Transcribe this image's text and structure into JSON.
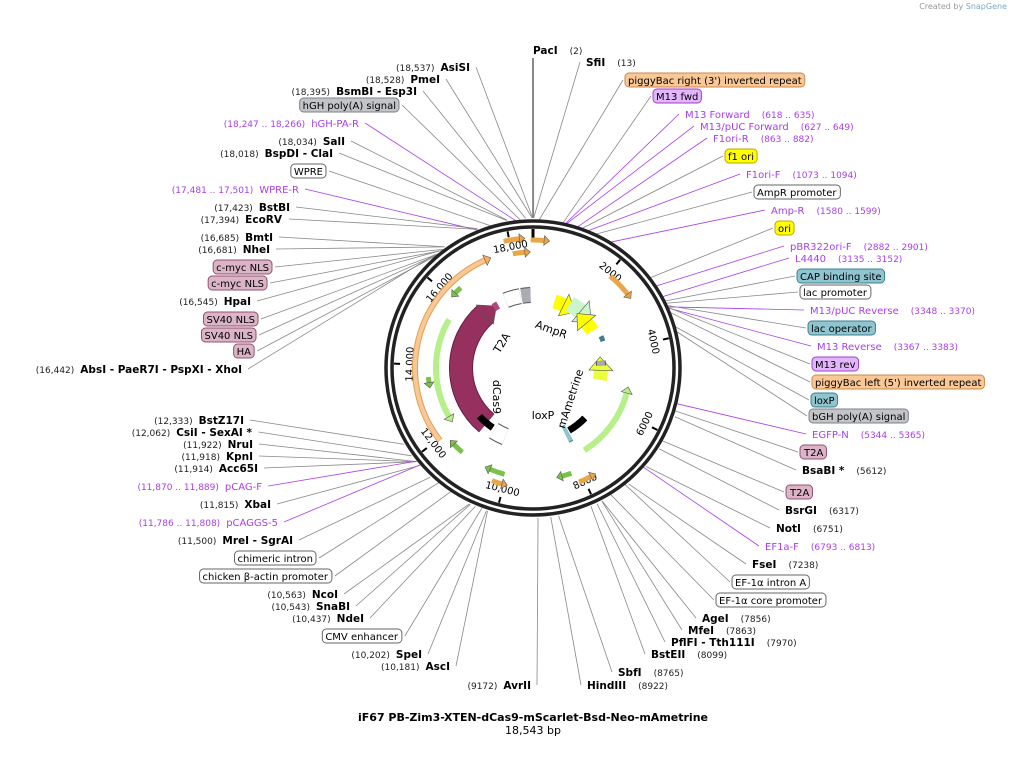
{
  "credit": {
    "prefix": "Created by",
    "brand": "SnapGene"
  },
  "plasmid": {
    "name": "iF67 PB-Zim3-XTEN-dCas9-mScarlet-Bsd-Neo-mAmetrine",
    "length": "18,543 bp",
    "total_bp": 18543
  },
  "colors": {
    "primer": "#a83ee8",
    "site_line": "#888888",
    "ring": "#222222",
    "orange": "#f9c896",
    "purple": "#e3b5fa",
    "yellow": "#ffff00",
    "teal": "#8ec5d0",
    "gray": "#c2c4c8",
    "white": "#ffffff",
    "pink": "#dcb4c8",
    "dcas9": "#96305f",
    "green": "#b7f08a"
  },
  "ticks": [
    "2000",
    "4000",
    "6000",
    "8000",
    "10,000",
    "12,000",
    "14,000",
    "16,000",
    "18,000"
  ],
  "inner_labels": [
    "T2A",
    "dCas9",
    "AmpR",
    "mAmetrine",
    "loxP"
  ],
  "labels": [
    {
      "kind": "site",
      "pos": "(18,537)",
      "name": "AsiSI",
      "bp": 18537
    },
    {
      "kind": "site",
      "pos": "(18,528)",
      "name": "PmeI",
      "bp": 18528
    },
    {
      "kind": "site",
      "pos": "(18,395)",
      "name": "BsmBI   - Esp3I",
      "bp": 18395
    },
    {
      "kind": "feature",
      "name": "hGH poly(A) signal",
      "color": "gray",
      "bp": 18300
    },
    {
      "kind": "primer",
      "pos": "(18,247 .. 18,266)",
      "name": "hGH-PA-R",
      "bp": 18256
    },
    {
      "kind": "site",
      "pos": "(18,034)",
      "name": "SalI",
      "bp": 18034
    },
    {
      "kind": "site",
      "pos": "(18,018)",
      "name": "BspDI   - ClaI",
      "bp": 18018
    },
    {
      "kind": "feature",
      "name": "WPRE",
      "color": "white",
      "bp": 17700
    },
    {
      "kind": "primer",
      "pos": "(17,481 .. 17,501)",
      "name": "WPRE-R",
      "bp": 17491
    },
    {
      "kind": "site",
      "pos": "(17,423)",
      "name": "BstBI",
      "bp": 17423
    },
    {
      "kind": "site",
      "pos": "(17,394)",
      "name": "EcoRV",
      "bp": 17394
    },
    {
      "kind": "site",
      "pos": "(16,685)",
      "name": "BmtI",
      "bp": 16685
    },
    {
      "kind": "site",
      "pos": "(16,681)",
      "name": "NheI",
      "bp": 16681
    },
    {
      "kind": "feature",
      "name": "c-myc NLS",
      "color": "pink",
      "bp": 16660
    },
    {
      "kind": "feature",
      "name": "c-myc NLS",
      "color": "pink",
      "bp": 16620
    },
    {
      "kind": "site",
      "pos": "(16,545)",
      "name": "HpaI",
      "bp": 16545
    },
    {
      "kind": "feature",
      "name": "SV40 NLS",
      "color": "pink",
      "bp": 16520
    },
    {
      "kind": "feature",
      "name": "SV40 NLS",
      "color": "pink",
      "bp": 16500
    },
    {
      "kind": "feature",
      "name": "HA",
      "color": "pink",
      "bp": 16470
    },
    {
      "kind": "site",
      "pos": "(16,442)",
      "name": "AbsI   - PaeR7I   - PspXI   - XhoI",
      "bp": 16442
    },
    {
      "kind": "site",
      "pos": "(12,333)",
      "name": "BstZ17I",
      "bp": 12333
    },
    {
      "kind": "site",
      "pos": "(12,062)",
      "name": "CsiI   - SexAI *",
      "bp": 12062
    },
    {
      "kind": "site",
      "pos": "(11,922)",
      "name": "NruI",
      "bp": 11922
    },
    {
      "kind": "site",
      "pos": "(11,918)",
      "name": "KpnI",
      "bp": 11918
    },
    {
      "kind": "site",
      "pos": "(11,914)",
      "name": "Acc65I",
      "bp": 11914
    },
    {
      "kind": "primer",
      "pos": "(11,870 .. 11,889)",
      "name": "pCAG-F",
      "bp": 11880
    },
    {
      "kind": "site",
      "pos": "(11,815)",
      "name": "XbaI",
      "bp": 11815
    },
    {
      "kind": "primer",
      "pos": "(11,786 .. 11,808)",
      "name": "pCAGGS-5",
      "bp": 11797
    },
    {
      "kind": "site",
      "pos": "(11,500)",
      "name": "MreI   - SgrAI",
      "bp": 11500
    },
    {
      "kind": "feature",
      "name": "chimeric intron",
      "color": "white",
      "bp": 11300
    },
    {
      "kind": "feature",
      "name": "chicken β-actin promoter",
      "color": "white",
      "bp": 11000
    },
    {
      "kind": "site",
      "pos": "(10,563)",
      "name": "NcoI",
      "bp": 10563
    },
    {
      "kind": "site",
      "pos": "(10,543)",
      "name": "SnaBI",
      "bp": 10543
    },
    {
      "kind": "site",
      "pos": "(10,437)",
      "name": "NdeI",
      "bp": 10437
    },
    {
      "kind": "feature",
      "name": "CMV enhancer",
      "color": "white",
      "bp": 10300
    },
    {
      "kind": "site",
      "pos": "(10,202)",
      "name": "SpeI",
      "bp": 10202
    },
    {
      "kind": "site",
      "pos": "(10,181)",
      "name": "AscI",
      "bp": 10181
    },
    {
      "kind": "site",
      "pos": "(9172)",
      "name": "AvrII",
      "bp": 9172
    },
    {
      "kind": "site",
      "pos": "(2)",
      "name": "PacI",
      "bp": 2
    },
    {
      "kind": "site",
      "pos": "(13)",
      "name": "SfiI",
      "bp": 13
    },
    {
      "kind": "feature",
      "name": "piggyBac right (3') inverted repeat",
      "color": "orange",
      "bp": 120
    },
    {
      "kind": "feature",
      "name": "M13 fwd",
      "color": "purple",
      "bp": 600
    },
    {
      "kind": "primer",
      "pos": "(618 .. 635)",
      "name": "M13 Forward",
      "bp": 626
    },
    {
      "kind": "primer",
      "pos": "(627 .. 649)",
      "name": "M13/pUC Forward",
      "bp": 638
    },
    {
      "kind": "primer",
      "pos": "(863 .. 882)",
      "name": "F1ori-R",
      "bp": 872
    },
    {
      "kind": "feature",
      "name": "f1 ori",
      "color": "yellow",
      "bp": 1000
    },
    {
      "kind": "primer",
      "pos": "(1073 .. 1094)",
      "name": "F1ori-F",
      "bp": 1083
    },
    {
      "kind": "feature",
      "name": "AmpR promoter",
      "color": "white",
      "bp": 1300
    },
    {
      "kind": "primer",
      "pos": "(1580 .. 1599)",
      "name": "Amp-R",
      "bp": 1590
    },
    {
      "kind": "feature",
      "name": "ori",
      "color": "yellow",
      "bp": 2700
    },
    {
      "kind": "primer",
      "pos": "(2882 .. 2901)",
      "name": "pBR322ori-F",
      "bp": 2891
    },
    {
      "kind": "primer",
      "pos": "(3135 .. 3152)",
      "name": "L4440",
      "bp": 3143
    },
    {
      "kind": "feature",
      "name": "CAP binding site",
      "color": "teal",
      "bp": 3250
    },
    {
      "kind": "feature",
      "name": "lac promoter",
      "color": "white",
      "bp": 3300
    },
    {
      "kind": "primer",
      "pos": "(3348 .. 3370)",
      "name": "M13/pUC Reverse",
      "bp": 3359
    },
    {
      "kind": "feature",
      "name": "lac operator",
      "color": "teal",
      "bp": 3350
    },
    {
      "kind": "primer",
      "pos": "(3367 .. 3383)",
      "name": "M13 Reverse",
      "bp": 3375
    },
    {
      "kind": "feature",
      "name": "M13 rev",
      "color": "purple",
      "bp": 3390
    },
    {
      "kind": "feature",
      "name": "piggyBac left (5') inverted repeat",
      "color": "orange",
      "bp": 3500
    },
    {
      "kind": "feature",
      "name": "loxP",
      "color": "teal",
      "bp": 3800
    },
    {
      "kind": "feature",
      "name": "bGH poly(A) signal",
      "color": "gray",
      "bp": 3900
    },
    {
      "kind": "primer",
      "pos": "(5344 .. 5365)",
      "name": "EGFP-N",
      "bp": 5354
    },
    {
      "kind": "feature",
      "name": "T2A",
      "color": "pink",
      "bp": 5500
    },
    {
      "kind": "site",
      "pos": "(5612)",
      "name": "BsaBI *",
      "bp": 5612
    },
    {
      "kind": "feature",
      "name": "T2A",
      "color": "pink",
      "bp": 6150
    },
    {
      "kind": "site",
      "pos": "(6317)",
      "name": "BsrGI",
      "bp": 6317
    },
    {
      "kind": "site",
      "pos": "(6751)",
      "name": "NotI",
      "bp": 6751
    },
    {
      "kind": "primer",
      "pos": "(6793 .. 6813)",
      "name": "EF1a-F",
      "bp": 6803
    },
    {
      "kind": "site",
      "pos": "(7238)",
      "name": "FseI",
      "bp": 7238
    },
    {
      "kind": "feature",
      "name": "EF-1α intron A",
      "color": "white",
      "bp": 7300
    },
    {
      "kind": "feature",
      "name": "EF-1α core promoter",
      "color": "white",
      "bp": 7650
    },
    {
      "kind": "site",
      "pos": "(7856)",
      "name": "AgeI",
      "bp": 7856
    },
    {
      "kind": "site",
      "pos": "(7863)",
      "name": "MfeI",
      "bp": 7863
    },
    {
      "kind": "site",
      "pos": "(7970)",
      "name": "PflFI   - Tth111I",
      "bp": 7970
    },
    {
      "kind": "site",
      "pos": "(8099)",
      "name": "BstEII",
      "bp": 8099
    },
    {
      "kind": "site",
      "pos": "(8765)",
      "name": "SbfI",
      "bp": 8765
    },
    {
      "kind": "site",
      "pos": "(8922)",
      "name": "HindIII",
      "bp": 8922
    }
  ]
}
